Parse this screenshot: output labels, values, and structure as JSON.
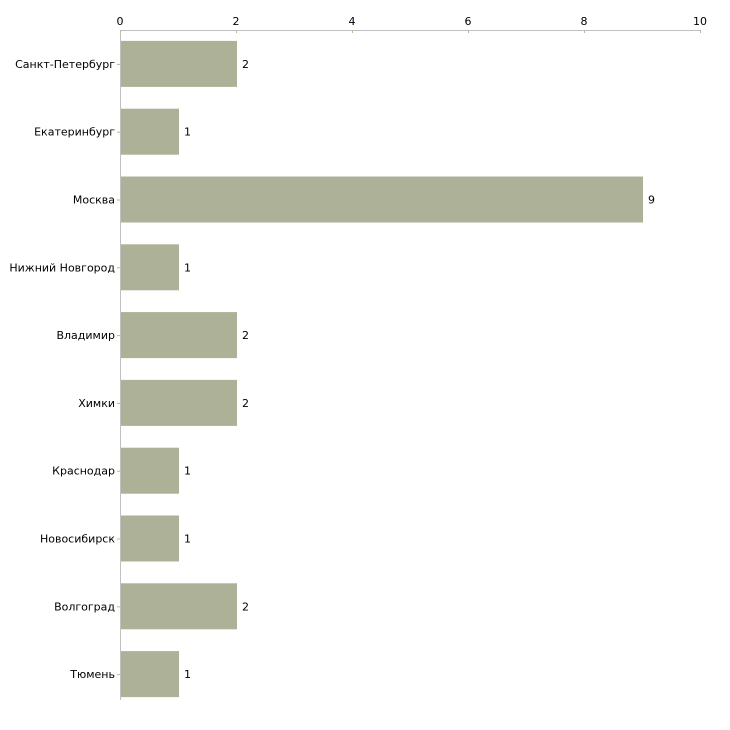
{
  "colors": {
    "bar": "#adb197",
    "axis": "#c0c0c0",
    "tick": "#b8bd8c",
    "text": "#000000"
  },
  "chart_data": {
    "type": "bar",
    "orientation": "horizontal",
    "title": "",
    "xlabel": "",
    "ylabel": "",
    "categories": [
      "Санкт-Петербург",
      "Екатеринбург",
      "Москва",
      "Нижний Новгород",
      "Владимир",
      "Химки",
      "Краснодар",
      "Новосибирск",
      "Волгоград",
      "Тюмень"
    ],
    "values": [
      2,
      1,
      9,
      1,
      2,
      2,
      1,
      1,
      2,
      1
    ],
    "xlim": [
      0,
      10
    ],
    "xticks": [
      "0",
      "2",
      "4",
      "6",
      "8",
      "10"
    ],
    "grid": false,
    "legend": "none",
    "data_labels": [
      "2",
      "1",
      "9",
      "1",
      "2",
      "2",
      "1",
      "1",
      "2",
      "1"
    ]
  }
}
